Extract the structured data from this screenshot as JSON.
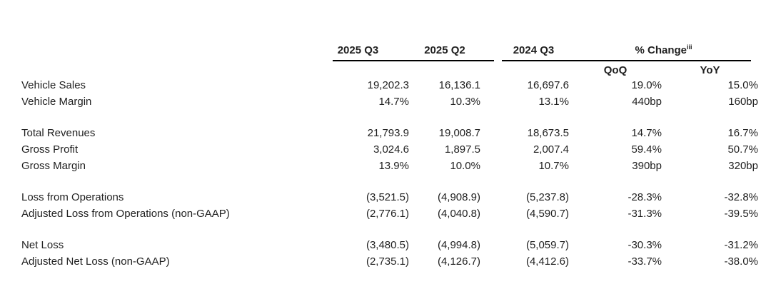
{
  "table": {
    "columns": [
      "2025 Q3",
      "2025 Q2",
      "2024 Q3"
    ],
    "change_header": {
      "label": "% Change",
      "superscript": "iii"
    },
    "subheaders": {
      "qoq": "QoQ",
      "yoy": "YoY"
    },
    "groups": [
      {
        "rows": [
          {
            "label": "Vehicle Sales",
            "values": [
              "19,202.3",
              "16,136.1",
              "16,697.6",
              "19.0%",
              "15.0%"
            ]
          },
          {
            "label": "Vehicle Margin",
            "values": [
              "14.7%",
              "10.3%",
              "13.1%",
              "440bp",
              "160bp"
            ]
          }
        ]
      },
      {
        "rows": [
          {
            "label": "Total Revenues",
            "values": [
              "21,793.9",
              "19,008.7",
              "18,673.5",
              "14.7%",
              "16.7%"
            ]
          },
          {
            "label": "Gross Profit",
            "values": [
              "3,024.6",
              "1,897.5",
              "2,007.4",
              "59.4%",
              "50.7%"
            ]
          },
          {
            "label": "Gross Margin",
            "values": [
              "13.9%",
              "10.0%",
              "10.7%",
              "390bp",
              "320bp"
            ]
          }
        ]
      },
      {
        "rows": [
          {
            "label": "Loss from Operations",
            "values": [
              "(3,521.5)",
              "(4,908.9)",
              "(5,237.8)",
              "-28.3%",
              "-32.8%"
            ]
          },
          {
            "label": "Adjusted Loss from Operations (non-GAAP)",
            "values": [
              "(2,776.1)",
              "(4,040.8)",
              "(4,590.7)",
              "-31.3%",
              "-39.5%"
            ]
          }
        ]
      },
      {
        "rows": [
          {
            "label": "Net Loss",
            "values": [
              "(3,480.5)",
              "(4,994.8)",
              "(5,059.7)",
              "-30.3%",
              "-31.2%"
            ]
          },
          {
            "label": "Adjusted Net Loss (non-GAAP)",
            "values": [
              "(2,735.1)",
              "(4,126.7)",
              "(4,412.6)",
              "-33.7%",
              "-38.0%"
            ]
          }
        ]
      }
    ]
  },
  "colors": {
    "text": "#1f1f1f",
    "rule": "#000000",
    "background": "#ffffff"
  }
}
